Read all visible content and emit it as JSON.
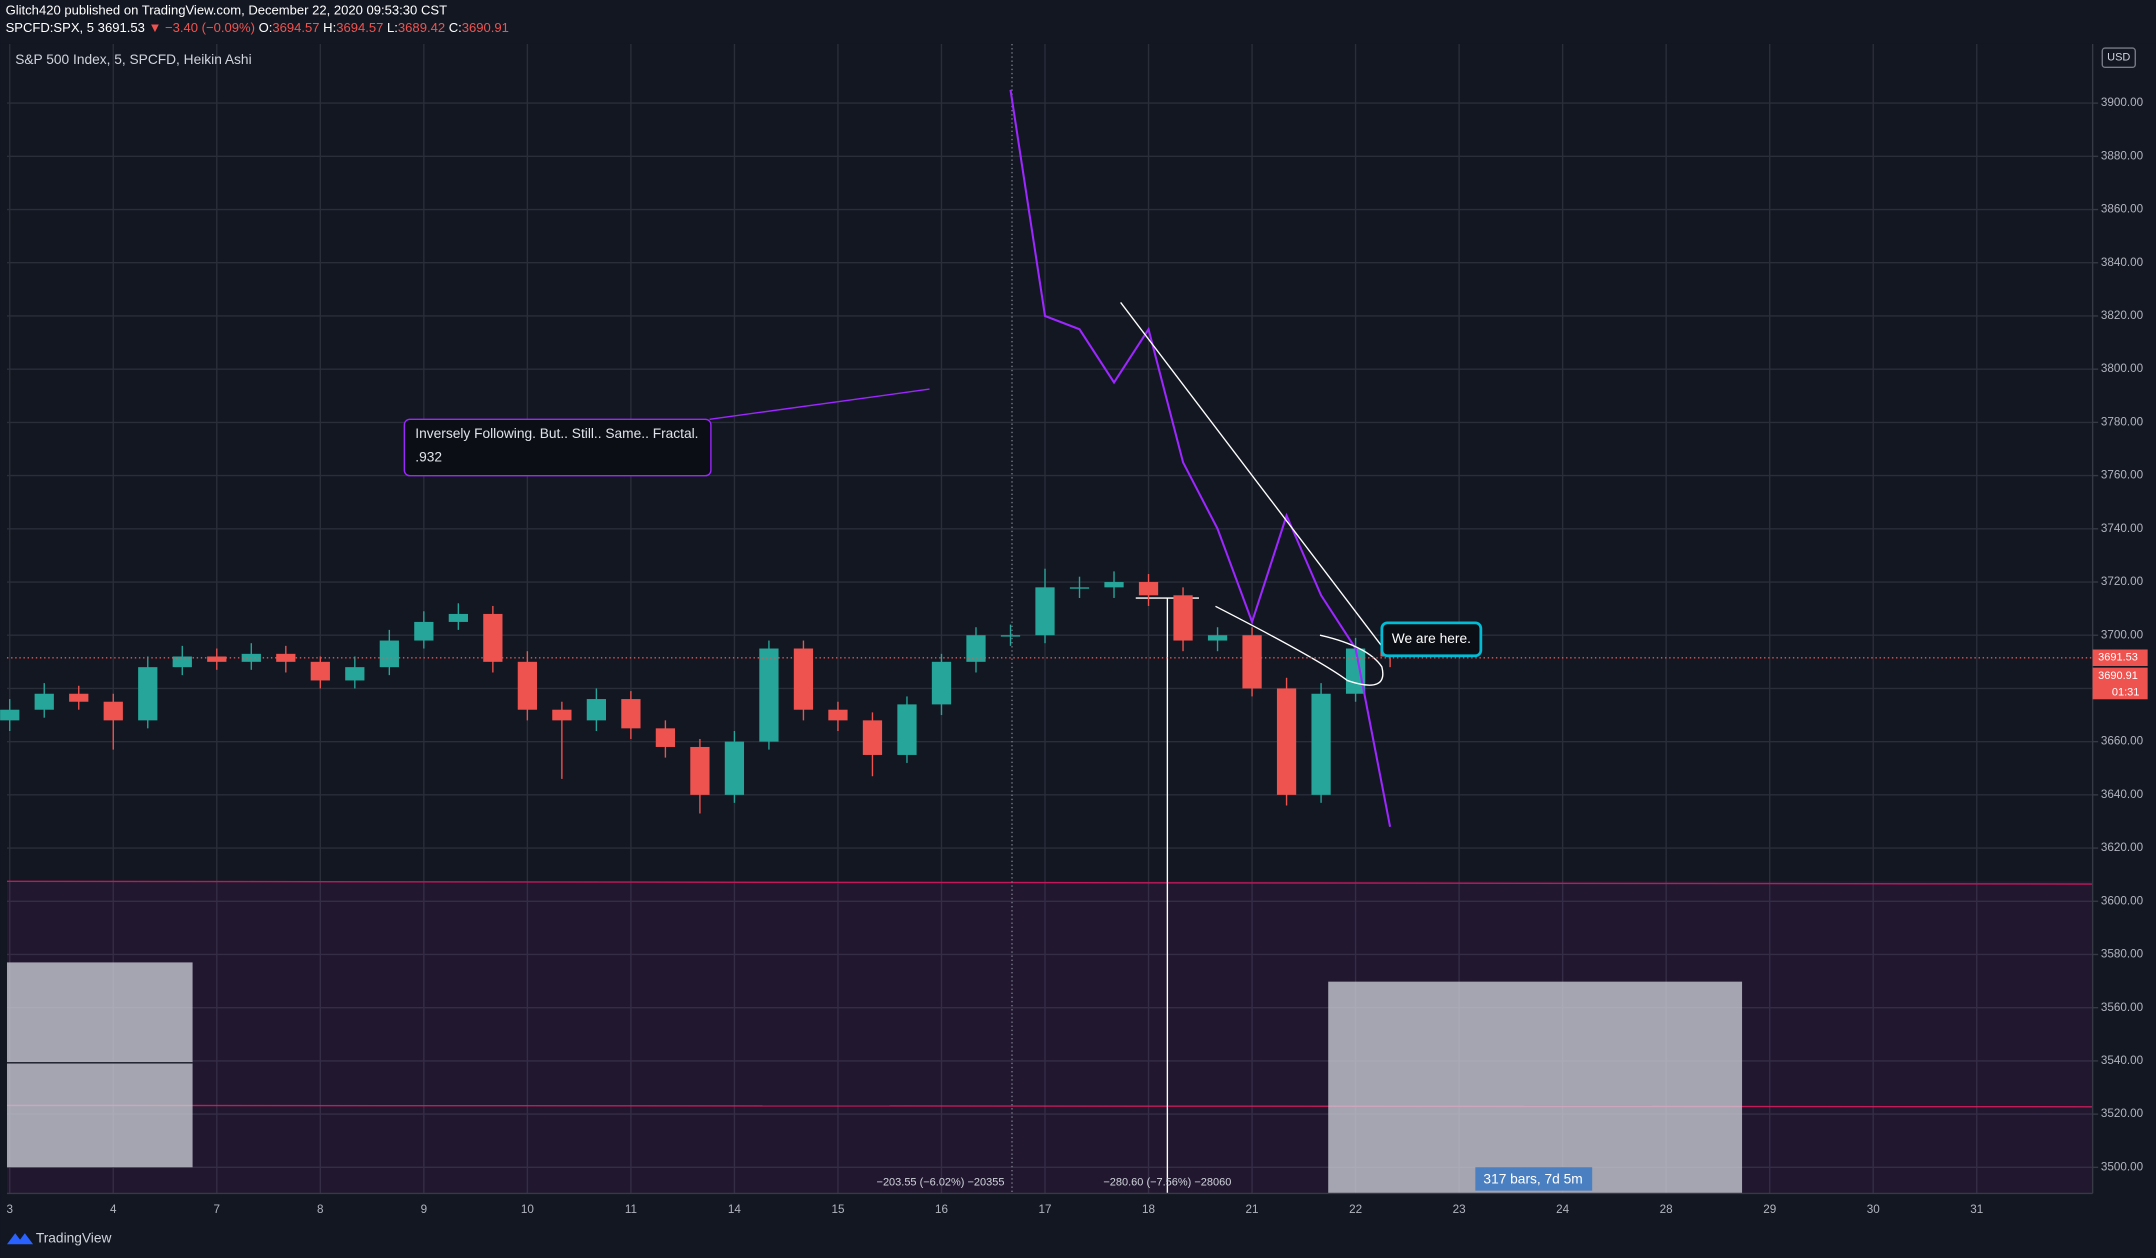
{
  "header": {
    "line1": "Glitch420 published on TradingView.com, December 22, 2020 09:53:30 CST",
    "symbol": "SPCFD:SPX, 5",
    "price": "3691.53",
    "change": "▼ −3.40 (−0.09%)",
    "o_label": "O:",
    "o": "3694.57",
    "h_label": "H:",
    "h": "3694.57",
    "l_label": "L:",
    "l": "3689.42",
    "c_label": "C:",
    "c": "3690.91"
  },
  "footer": {
    "brand": "TradingView"
  },
  "chart_data": {
    "type": "candlestick",
    "legend": "S&P 500 Index, 5, SPCFD, Heikin Ashi",
    "currency": "USD",
    "up_color": "#26a69a",
    "down_color": "#ef5350",
    "grid": true,
    "categories": [
      "3",
      null,
      null,
      "4",
      null,
      null,
      "7",
      null,
      null,
      "8",
      null,
      null,
      "9",
      null,
      null,
      "10",
      null,
      null,
      "11",
      null,
      null,
      "14",
      null,
      null,
      "15",
      null,
      null,
      "16",
      null,
      null,
      "17",
      null,
      null,
      "18",
      null,
      null,
      "21",
      null,
      null,
      "22",
      null,
      null,
      "23",
      null,
      null,
      "24",
      null,
      null,
      "28",
      null,
      null,
      "29",
      null,
      null,
      "30",
      null,
      null,
      "31",
      null,
      null
    ],
    "open": [
      3668,
      3672,
      3678,
      3675,
      3668,
      3688,
      3692,
      3690,
      3693,
      3690,
      3683,
      3688,
      3698,
      3705,
      3708,
      3690,
      3672,
      3668,
      3676,
      3665,
      3658,
      3640,
      3660,
      3695,
      3672,
      3668,
      3655,
      3674,
      3690,
      3700,
      3700,
      3718,
      3718,
      3720,
      3715,
      3698,
      3700,
      3680,
      3640,
      3678,
      3695,
      null,
      null,
      null,
      null,
      null,
      null,
      null,
      null,
      null,
      null,
      null,
      null,
      null,
      null,
      null,
      null,
      null,
      null,
      null
    ],
    "high": [
      3676,
      3682,
      3681,
      3678,
      3692,
      3696,
      3695,
      3697,
      3696,
      3692,
      3692,
      3702,
      3709,
      3712,
      3711,
      3694,
      3675,
      3680,
      3679,
      3668,
      3661,
      3664,
      3698,
      3698,
      3675,
      3671,
      3677,
      3693,
      3703,
      3704,
      3725,
      3722,
      3724,
      3723,
      3718,
      3703,
      3703,
      3684,
      3682,
      3699,
      3698,
      null,
      null,
      null,
      null,
      null,
      null,
      null,
      null,
      null,
      null,
      null,
      null,
      null,
      null,
      null,
      null,
      null,
      null,
      null
    ],
    "low": [
      3664,
      3669,
      3672,
      3657,
      3665,
      3685,
      3687,
      3687,
      3686,
      3680,
      3680,
      3685,
      3695,
      3702,
      3686,
      3668,
      3646,
      3664,
      3661,
      3654,
      3633,
      3637,
      3657,
      3668,
      3664,
      3647,
      3652,
      3670,
      3686,
      3696,
      3697,
      3714,
      3714,
      3711,
      3694,
      3694,
      3677,
      3636,
      3637,
      3675,
      3688,
      null,
      null,
      null,
      null,
      null,
      null,
      null,
      null,
      null,
      null,
      null,
      null,
      null,
      null,
      null,
      null,
      null,
      null,
      null
    ],
    "close": [
      3672,
      3678,
      3675,
      3668,
      3688,
      3692,
      3690,
      3693,
      3690,
      3683,
      3688,
      3698,
      3705,
      3708,
      3690,
      3672,
      3668,
      3676,
      3665,
      3658,
      3640,
      3660,
      3695,
      3672,
      3668,
      3655,
      3674,
      3690,
      3700,
      3700,
      3718,
      3718,
      3720,
      3715,
      3698,
      3700,
      3680,
      3640,
      3678,
      3695,
      3692,
      null,
      null,
      null,
      null,
      null,
      null,
      null,
      null,
      null,
      null,
      null,
      null,
      null,
      null,
      null,
      null,
      null,
      null,
      null
    ],
    "overlay": {
      "color": "#9c27ff",
      "values": [
        null,
        null,
        null,
        null,
        null,
        null,
        null,
        null,
        null,
        null,
        null,
        null,
        null,
        null,
        null,
        null,
        null,
        null,
        null,
        null,
        null,
        null,
        null,
        null,
        null,
        null,
        null,
        null,
        null,
        3905,
        3820,
        3815,
        3795,
        3815,
        3765,
        3740,
        3705,
        3745,
        3715,
        3695,
        3628,
        null,
        null,
        null,
        null,
        null,
        null,
        null,
        null,
        null,
        null,
        null,
        null,
        null,
        null,
        null,
        null,
        null,
        null,
        null
      ]
    },
    "last_price": 3691.53,
    "last_close": 3690.91,
    "countdown": "01:31",
    "ylim": [
      3490,
      3920
    ],
    "yticks": [
      {
        "value": 3500,
        "label": "3500.00"
      },
      {
        "value": 3520,
        "label": "3520.00"
      },
      {
        "value": 3540,
        "label": "3540.00"
      },
      {
        "value": 3560,
        "label": "3560.00"
      },
      {
        "value": 3580,
        "label": "3580.00"
      },
      {
        "value": 3600,
        "label": "3600.00"
      },
      {
        "value": 3620,
        "label": "3620.00"
      },
      {
        "value": 3640,
        "label": "3640.00"
      },
      {
        "value": 3660,
        "label": "3660.00"
      },
      {
        "value": 3680,
        "label": "3680.00"
      },
      {
        "value": 3700,
        "label": "3700.00"
      },
      {
        "value": 3720,
        "label": "3720.00"
      },
      {
        "value": 3740,
        "label": "3740.00"
      },
      {
        "value": 3760,
        "label": "3760.00"
      },
      {
        "value": 3780,
        "label": "3780.00"
      },
      {
        "value": 3800,
        "label": "3800.00"
      },
      {
        "value": 3820,
        "label": "3820.00"
      },
      {
        "value": 3840,
        "label": "3840.00"
      },
      {
        "value": 3860,
        "label": "3860.00"
      },
      {
        "value": 3880,
        "label": "3880.00"
      },
      {
        "value": 3900,
        "label": "3900.00"
      }
    ],
    "annotations": {
      "callout": "Inversely Following. But.. Still.. Same.. Fractal.",
      "callout_sub": ".932",
      "here": "We are here.",
      "measure1": "−203.55 (−6.02%) −20355",
      "measure2": "−280.60 (−7.56%) −28060",
      "range": "317 bars, 7d 5m"
    }
  }
}
